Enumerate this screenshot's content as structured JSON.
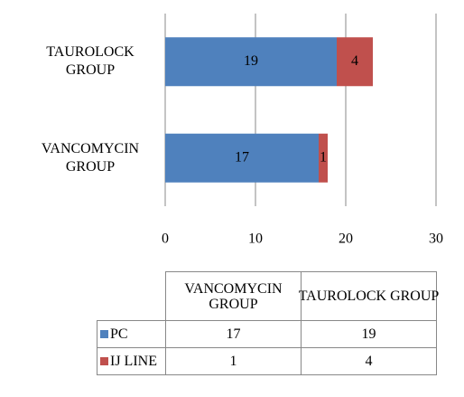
{
  "chart_data": {
    "type": "stacked_barh",
    "categories": [
      "VANCOMYCIN GROUP",
      "TAUROLOCK GROUP"
    ],
    "series": [
      {
        "name": "PC",
        "color": "#4f81bd",
        "values": [
          17,
          19
        ]
      },
      {
        "name": "IJ LINE",
        "color": "#c0504d",
        "values": [
          1,
          4
        ]
      }
    ],
    "xlim": [
      0,
      30
    ],
    "xticks": [
      0,
      10,
      20,
      30
    ],
    "grid": true,
    "data_table": true
  }
}
